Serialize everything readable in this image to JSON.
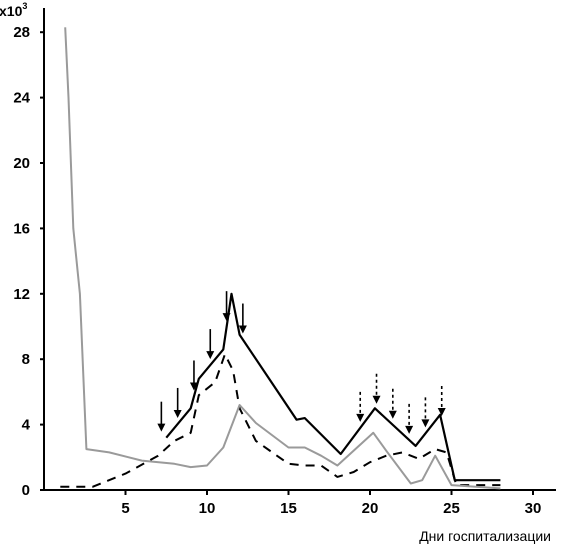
{
  "chart_data": {
    "type": "line",
    "title": "",
    "xlabel": "Дни госпитализации",
    "ylabel": "",
    "y_multiplier_label": "x10",
    "y_multiplier_exp": "3",
    "xlim": [
      0,
      32
    ],
    "ylim": [
      0,
      29
    ],
    "x_ticks": [
      5,
      10,
      15,
      20,
      25,
      30
    ],
    "y_ticks": [
      0,
      4,
      8,
      12,
      16,
      20,
      24,
      28
    ],
    "grid": false,
    "legend": "none",
    "series": [
      {
        "style": "solid-black-thick",
        "color": "#000000",
        "points": [
          [
            7.5,
            3.2
          ],
          [
            9,
            5
          ],
          [
            9.5,
            6.8
          ],
          [
            10.5,
            8
          ],
          [
            11,
            8.6
          ],
          [
            11.5,
            12
          ],
          [
            12,
            9.5
          ],
          [
            15.5,
            4.3
          ],
          [
            16,
            4.4
          ],
          [
            18.2,
            2.2
          ],
          [
            20.3,
            5
          ],
          [
            22.8,
            2.7
          ],
          [
            24.3,
            4.6
          ],
          [
            25.2,
            0.6
          ],
          [
            28,
            0.6
          ]
        ]
      },
      {
        "style": "dashed-black",
        "color": "#000000",
        "points": [
          [
            1,
            0.2
          ],
          [
            3,
            0.2
          ],
          [
            5,
            1
          ],
          [
            7,
            2.1
          ],
          [
            8,
            3
          ],
          [
            9,
            3.5
          ],
          [
            9.5,
            5.8
          ],
          [
            10.5,
            6.6
          ],
          [
            11.1,
            8.3
          ],
          [
            11.6,
            7.3
          ],
          [
            12,
            5
          ],
          [
            13,
            3
          ],
          [
            15,
            1.6
          ],
          [
            16,
            1.5
          ],
          [
            17,
            1.5
          ],
          [
            18,
            0.8
          ],
          [
            19,
            1.1
          ],
          [
            20,
            1.7
          ],
          [
            21,
            2.1
          ],
          [
            22,
            2.3
          ],
          [
            23,
            1.9
          ],
          [
            24,
            2.5
          ],
          [
            24.7,
            2.3
          ],
          [
            25.3,
            0.3
          ],
          [
            28,
            0.3
          ]
        ]
      },
      {
        "style": "solid-grey",
        "color": "#9a9a9a",
        "points": [
          [
            1.3,
            28.3
          ],
          [
            1.5,
            24
          ],
          [
            1.8,
            16
          ],
          [
            2.2,
            12
          ],
          [
            2.6,
            2.5
          ],
          [
            4,
            2.3
          ],
          [
            6,
            1.8
          ],
          [
            8,
            1.6
          ],
          [
            9,
            1.4
          ],
          [
            10,
            1.5
          ],
          [
            11,
            2.6
          ],
          [
            12,
            5.2
          ],
          [
            13,
            4.1
          ],
          [
            15,
            2.6
          ],
          [
            16,
            2.6
          ],
          [
            17,
            2.1
          ],
          [
            18,
            1.5
          ],
          [
            20.2,
            3.5
          ],
          [
            21,
            2.4
          ],
          [
            22.5,
            0.4
          ],
          [
            23.2,
            0.6
          ],
          [
            24,
            2.1
          ],
          [
            25,
            0.3
          ],
          [
            28,
            0.1
          ]
        ]
      }
    ],
    "annotations": {
      "solid_arrows_x": [
        7.2,
        8.2,
        9.2,
        10.2,
        11.2,
        12.2
      ],
      "dashed_arrows_x": [
        19.4,
        20.4,
        21.4,
        22.4,
        23.4,
        24.4
      ]
    }
  }
}
